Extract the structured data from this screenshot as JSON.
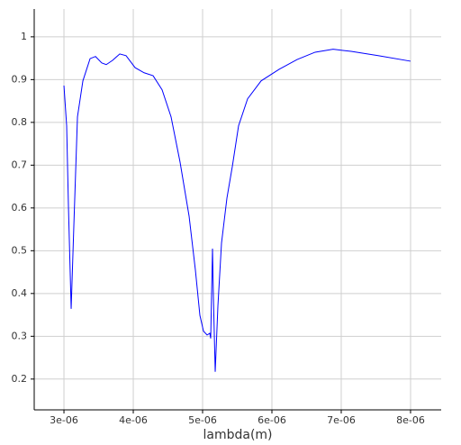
{
  "chart_data": {
    "type": "line",
    "x_label": "lambda(m)",
    "x": [
      3e-06,
      3.039e-06,
      3.065e-06,
      3.104e-06,
      3.143e-06,
      3.195e-06,
      3.273e-06,
      3.377e-06,
      3.455e-06,
      3.545e-06,
      3.61e-06,
      3.701e-06,
      3.805e-06,
      3.896e-06,
      4.026e-06,
      4.156e-06,
      4.286e-06,
      4.416e-06,
      4.545e-06,
      4.675e-06,
      4.805e-06,
      4.896e-06,
      4.961e-06,
      5.013e-06,
      5.065e-06,
      5.104e-06,
      5.117e-06,
      5.143e-06,
      5.156e-06,
      5.182e-06,
      5.221e-06,
      5.273e-06,
      5.351e-06,
      5.429e-06,
      5.519e-06,
      5.649e-06,
      5.844e-06,
      6.104e-06,
      6.364e-06,
      6.623e-06,
      6.883e-06,
      7.143e-06,
      7.532e-06,
      8e-06
    ],
    "series": [
      {
        "color": "#0000ff",
        "values": [
          0.886,
          0.792,
          0.602,
          0.364,
          0.56,
          0.813,
          0.897,
          0.949,
          0.954,
          0.939,
          0.935,
          0.945,
          0.96,
          0.956,
          0.928,
          0.916,
          0.909,
          0.876,
          0.813,
          0.707,
          0.581,
          0.455,
          0.349,
          0.312,
          0.303,
          0.307,
          0.295,
          0.505,
          0.392,
          0.217,
          0.371,
          0.518,
          0.623,
          0.697,
          0.792,
          0.855,
          0.897,
          0.924,
          0.947,
          0.964,
          0.971,
          0.966,
          0.956,
          0.943
        ]
      }
    ],
    "xlim": [
      2.571e-06,
      8.442e-06
    ],
    "ylim": [
      0.128,
      1.065
    ],
    "xticks": [
      {
        "value": 3e-06,
        "label": "3e-06"
      },
      {
        "value": 4e-06,
        "label": "4e-06"
      },
      {
        "value": 5e-06,
        "label": "5e-06"
      },
      {
        "value": 6e-06,
        "label": "6e-06"
      },
      {
        "value": 7e-06,
        "label": "7e-06"
      },
      {
        "value": 8e-06,
        "label": "8e-06"
      }
    ],
    "yticks": [
      0.2,
      0.3,
      0.4,
      0.5,
      0.6,
      0.7,
      0.8,
      0.9,
      1
    ],
    "grid": true
  }
}
